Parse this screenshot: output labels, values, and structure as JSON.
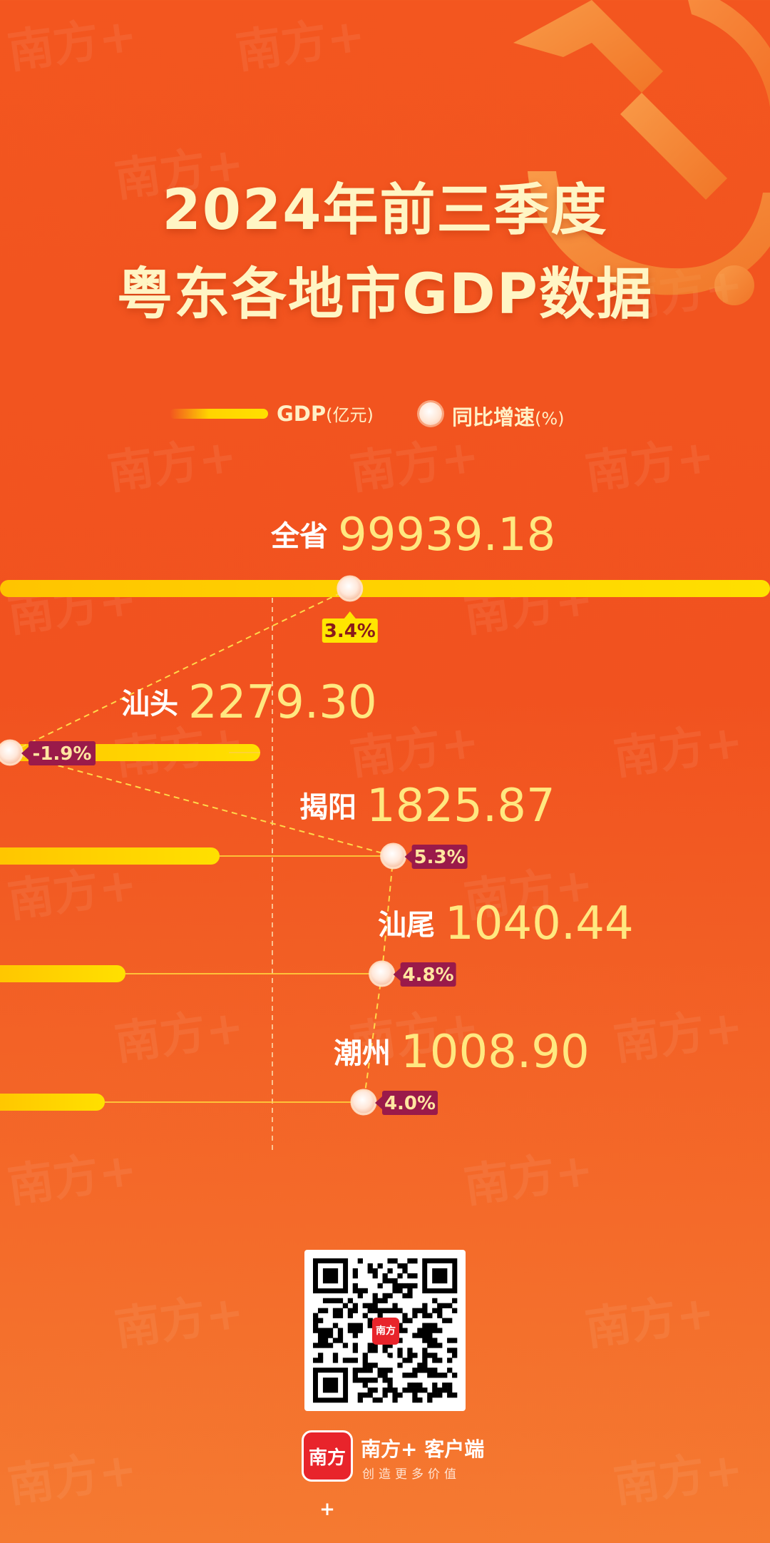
{
  "title": {
    "line1": "2024年前三季度",
    "line2": "粤东各地市GDP数据"
  },
  "legend": {
    "gdp_label": "GDP",
    "gdp_unit": "(亿元)",
    "growth_label": "同比增速",
    "growth_unit": "(%)"
  },
  "watermark": "南方+",
  "colors": {
    "bar": "#ffd400",
    "value_text": "#ffe880",
    "name_text": "#ffffff",
    "badge_negative_bg": "#9a1a4a",
    "badge_province_bg": "#ffe600",
    "line": "#ffd84a",
    "background_top": "#f3561f",
    "background_bottom": "#f57a31"
  },
  "chart_data": {
    "type": "bar",
    "categories": [
      "全省",
      "汕头",
      "揭阳",
      "汕尾",
      "潮州"
    ],
    "series": [
      {
        "name": "GDP",
        "values": [
          99939.18,
          2279.3,
          1825.87,
          1040.44,
          1008.9
        ]
      },
      {
        "name": "同比增速",
        "values": [
          3.4,
          -1.9,
          5.3,
          4.8,
          4.0
        ]
      }
    ],
    "value_labels": [
      "99939.18",
      "2279.30",
      "1825.87",
      "1040.44",
      "1008.90"
    ],
    "growth_labels": [
      "3.4",
      "-1.9",
      "5.3",
      "4.8",
      "4.0"
    ],
    "growth_suffix": "%",
    "gdp_unit": "亿元",
    "growth_unit": "%",
    "title": "2024年前三季度 粤东各地市GDP数据"
  },
  "footer": {
    "qr_center_text": "南方+",
    "logo_text": "南方+",
    "app_name": "南方+ 客户端",
    "slogan": "创造更多价值"
  }
}
